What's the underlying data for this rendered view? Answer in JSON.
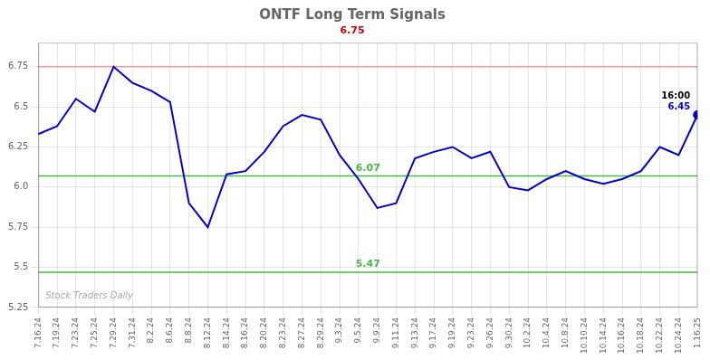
{
  "chart_data": {
    "type": "line",
    "title": "ONTF Long Term Signals",
    "subtitle": "6.75",
    "categories": [
      "7.16.24",
      "7.19.24",
      "7.23.24",
      "7.25.24",
      "7.29.24",
      "7.31.24",
      "8.2.24",
      "8.6.24",
      "8.8.24",
      "8.12.24",
      "8.14.24",
      "8.16.24",
      "8.20.24",
      "8.23.24",
      "8.27.24",
      "8.29.24",
      "9.3.24",
      "9.5.24",
      "9.9.24",
      "9.11.24",
      "9.13.24",
      "9.17.24",
      "9.19.24",
      "9.23.24",
      "9.26.24",
      "9.30.24",
      "10.2.24",
      "10.4.24",
      "10.8.24",
      "10.10.24",
      "10.14.24",
      "10.16.24",
      "10.18.24",
      "10.22.24",
      "10.24.24",
      "1.16.25"
    ],
    "values": [
      6.33,
      6.38,
      6.55,
      6.47,
      6.75,
      6.65,
      6.6,
      6.53,
      5.9,
      5.75,
      6.08,
      6.1,
      6.22,
      6.38,
      6.45,
      6.42,
      6.2,
      6.05,
      5.87,
      5.9,
      6.18,
      6.22,
      6.25,
      6.18,
      6.22,
      6.0,
      5.98,
      6.05,
      6.1,
      6.05,
      6.02,
      6.05,
      6.1,
      6.25,
      6.2,
      6.45
    ],
    "color": "#0000cc",
    "reference_lines": [
      {
        "value": 6.75,
        "color": "#ff9999"
      },
      {
        "value": 6.07,
        "color": "#44bb44",
        "label": "6.07"
      },
      {
        "value": 5.47,
        "color": "#44bb44",
        "label": "5.47"
      }
    ],
    "annotations": [
      "16:00",
      "6.45"
    ],
    "watermark": "Stock Traders Daily",
    "ylim": [
      5.25,
      6.9
    ],
    "yticks": [
      5.25,
      5.5,
      5.75,
      {
        "value": 6,
        "label": "6.0"
      },
      6.25,
      6.5,
      6.75
    ],
    "grid": true
  }
}
